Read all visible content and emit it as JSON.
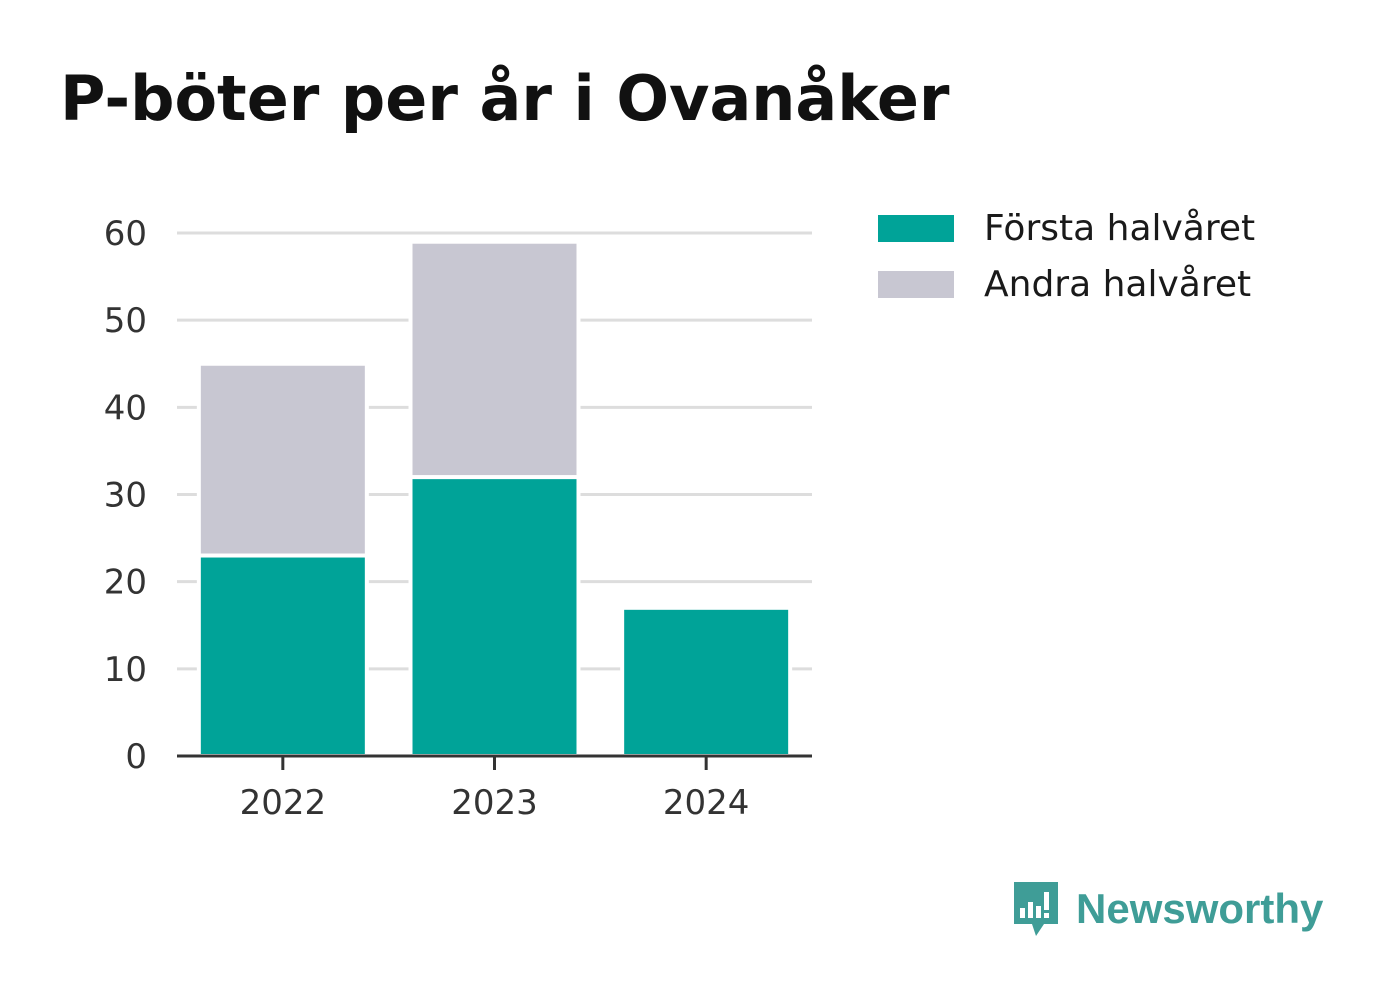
{
  "colors": {
    "first_half": "#00a398",
    "second_half": "#c8c7d2",
    "grid": "#dddddd",
    "axis": "#333333",
    "brand": "#3f9d97"
  },
  "chart_data": {
    "type": "bar",
    "stacked": true,
    "title": "P-böter per år i Ovanåker",
    "categories": [
      "2022",
      "2023",
      "2024"
    ],
    "series": [
      {
        "name": "Första halvåret",
        "values": [
          23,
          32,
          17
        ]
      },
      {
        "name": "Andra halvåret",
        "values": [
          22,
          27,
          0
        ]
      }
    ],
    "ylim": [
      0,
      60
    ],
    "yticks": [
      0,
      10,
      20,
      30,
      40,
      50,
      60
    ],
    "grid": true,
    "legend": "top-right"
  },
  "legend": {
    "first_label": "Första halvåret",
    "second_label": "Andra halvåret"
  },
  "brand": {
    "name": "Newsworthy",
    "icon": "newsworthy-logo-icon"
  }
}
